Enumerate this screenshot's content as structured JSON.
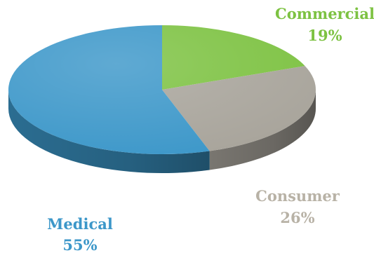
{
  "chart_data": {
    "type": "pie",
    "title": "",
    "categories": [
      "Commercial",
      "Consumer",
      "Medical"
    ],
    "values": [
      19,
      26,
      55
    ],
    "value_labels": [
      "19%",
      "26%",
      "55%"
    ],
    "colors": [
      "#7dc242",
      "#a8a49b",
      "#3c97c9"
    ],
    "label_colors": [
      "#7dc242",
      "#b8b2a6",
      "#3c97c9"
    ],
    "style": "3d"
  }
}
